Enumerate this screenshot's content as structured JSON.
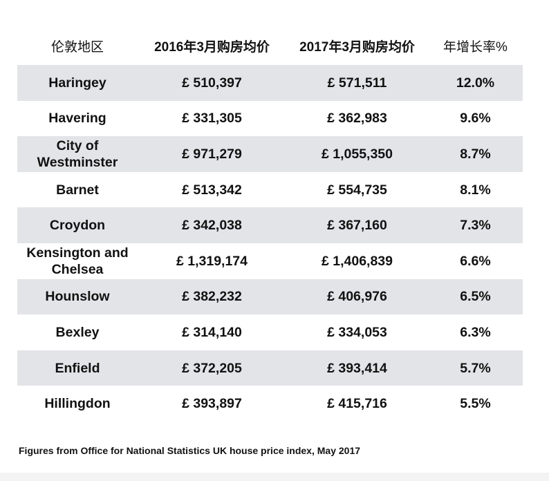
{
  "table": {
    "headers": [
      "伦敦地区",
      "2016年3月购房均价",
      "2017年3月购房均价",
      "年增长率%"
    ],
    "rows": [
      {
        "region": "Haringey",
        "price_2016": "£ 510,397",
        "price_2017": "£ 571,511",
        "growth": "12.0%"
      },
      {
        "region": "Havering",
        "price_2016": "£ 331,305",
        "price_2017": "£ 362,983",
        "growth": "9.6%"
      },
      {
        "region": "City of Westminster",
        "price_2016": "£ 971,279",
        "price_2017": "£ 1,055,350",
        "growth": "8.7%"
      },
      {
        "region": "Barnet",
        "price_2016": "£ 513,342",
        "price_2017": "£ 554,735",
        "growth": "8.1%"
      },
      {
        "region": "Croydon",
        "price_2016": "£ 342,038",
        "price_2017": "£ 367,160",
        "growth": "7.3%"
      },
      {
        "region": "Kensington and Chelsea",
        "price_2016": "£ 1,319,174",
        "price_2017": "£ 1,406,839",
        "growth": "6.6%"
      },
      {
        "region": "Hounslow",
        "price_2016": "£ 382,232",
        "price_2017": "£ 406,976",
        "growth": "6.5%"
      },
      {
        "region": "Bexley",
        "price_2016": "£ 314,140",
        "price_2017": "£ 334,053",
        "growth": "6.3%"
      },
      {
        "region": "Enfield",
        "price_2016": "£ 372,205",
        "price_2017": "£ 393,414",
        "growth": "5.7%"
      },
      {
        "region": "Hillingdon",
        "price_2016": "£ 393,897",
        "price_2017": "£ 415,716",
        "growth": "5.5%"
      }
    ]
  },
  "footnote": "Figures from Office for National Statistics UK house price index, May 2017",
  "colors": {
    "shaded_row": "#e2e4e7",
    "text": "#111111",
    "background": "#ffffff"
  }
}
